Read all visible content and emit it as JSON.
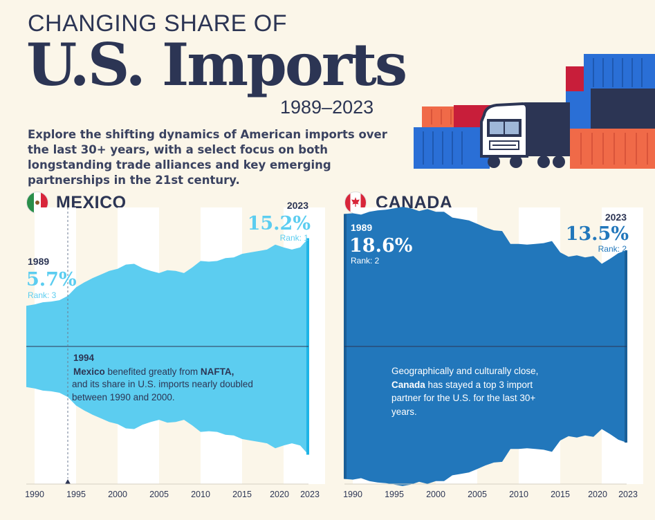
{
  "header": {
    "kicker": "CHANGING SHARE OF",
    "title": "U.S. Imports",
    "years": "1989–2023",
    "intro": "Explore the shifting dynamics of American imports over the last 30+ years, with a select focus on both longstanding trade alliances and key emerging partnerships in the 21st century."
  },
  "colors": {
    "mexico": "#5ccdf0",
    "canada": "#2277bb",
    "navy": "#2c3554",
    "background": "#fbf6e9"
  },
  "icons": {
    "mexico_flag": "mexico-flag-icon",
    "canada_flag": "canada-flag-icon",
    "truck": "truck-icon",
    "container": "shipping-container-icon"
  },
  "chart_data": [
    {
      "type": "area",
      "country": "MEXICO",
      "x": [
        1989,
        1990,
        1991,
        1992,
        1993,
        1994,
        1995,
        1996,
        1997,
        1998,
        1999,
        2000,
        2001,
        2002,
        2003,
        2004,
        2005,
        2006,
        2007,
        2008,
        2009,
        2010,
        2011,
        2012,
        2013,
        2014,
        2015,
        2016,
        2017,
        2018,
        2019,
        2020,
        2021,
        2022,
        2023
      ],
      "values": [
        5.7,
        5.9,
        6.2,
        6.3,
        6.5,
        7.1,
        8.3,
        9.0,
        9.6,
        10.1,
        10.6,
        10.9,
        11.5,
        11.6,
        11.0,
        10.6,
        10.3,
        10.7,
        10.6,
        10.3,
        11.1,
        12.0,
        11.9,
        12.0,
        12.4,
        12.5,
        13.0,
        13.2,
        13.4,
        13.6,
        14.3,
        13.9,
        13.6,
        13.9,
        15.2
      ],
      "xticks": [
        "1990",
        "1995",
        "2000",
        "2005",
        "2010",
        "2015",
        "2020",
        "2023"
      ],
      "start": {
        "year": "1989",
        "value": "5.7%",
        "rank": "Rank: 3"
      },
      "end": {
        "year": "2023",
        "value": "15.2%",
        "rank": "Rank: 1"
      },
      "annotation": {
        "year": "1994",
        "bold1": "Mexico",
        "text1": " benefited greatly from ",
        "bold2": "NAFTA,",
        "text2": "and its share in U.S. imports nearly doubled between 1990 and 2000."
      }
    },
    {
      "type": "area",
      "country": "CANADA",
      "x": [
        1989,
        1990,
        1991,
        1992,
        1993,
        1994,
        1995,
        1996,
        1997,
        1998,
        1999,
        2000,
        2001,
        2002,
        2003,
        2004,
        2005,
        2006,
        2007,
        2008,
        2009,
        2010,
        2011,
        2012,
        2013,
        2014,
        2015,
        2016,
        2017,
        2018,
        2019,
        2020,
        2021,
        2022,
        2023
      ],
      "values": [
        18.6,
        18.7,
        18.5,
        18.9,
        19.1,
        19.2,
        19.4,
        19.6,
        19.4,
        19.0,
        19.3,
        18.9,
        18.9,
        18.1,
        17.9,
        17.7,
        17.2,
        16.7,
        16.3,
        16.2,
        14.4,
        14.4,
        14.3,
        14.4,
        14.5,
        14.8,
        13.2,
        12.6,
        12.8,
        12.5,
        12.7,
        11.6,
        12.3,
        13.1,
        13.5
      ],
      "xticks": [
        "1990",
        "1995",
        "2000",
        "2005",
        "2010",
        "2015",
        "2020",
        "2023"
      ],
      "start": {
        "year": "1989",
        "value": "18.6%",
        "rank": "Rank: 2"
      },
      "end": {
        "year": "2023",
        "value": "13.5%",
        "rank": "Rank: 2"
      },
      "annotation": {
        "text1": "Geographically and culturally close, ",
        "bold1": "Canada",
        "text2": " has stayed a top 3 import partner for the U.S. for the last 30+ years."
      }
    }
  ]
}
